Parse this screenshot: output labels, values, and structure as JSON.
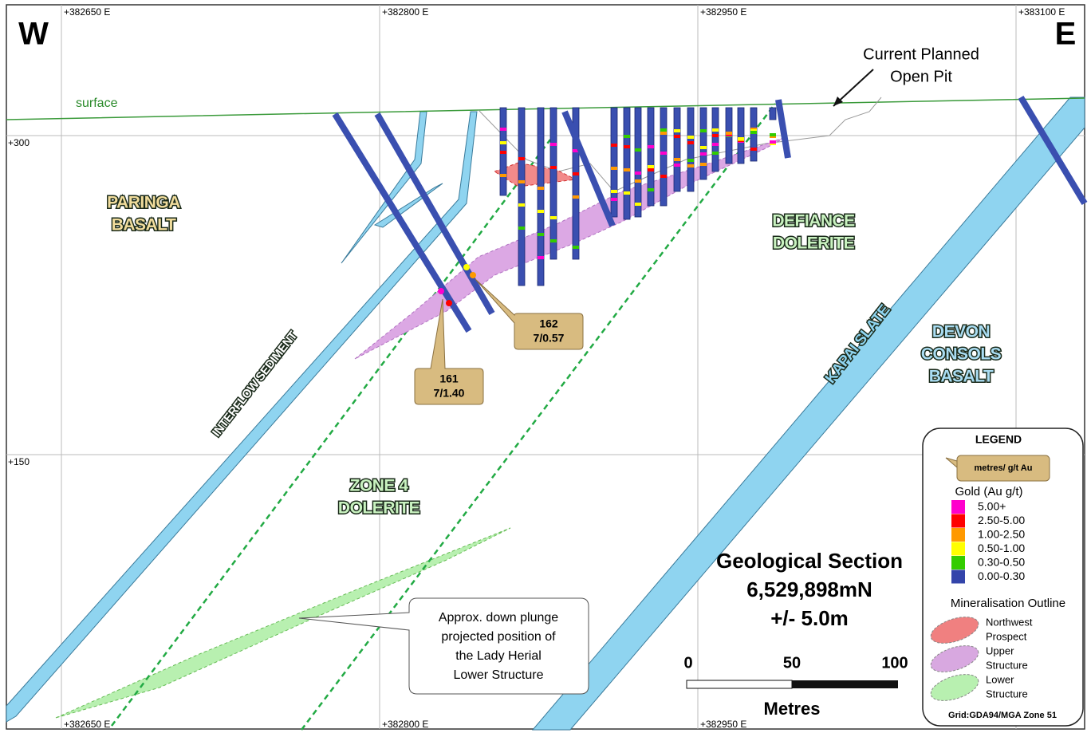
{
  "corners": {
    "west": "W",
    "east": "E"
  },
  "grid": {
    "eastings_top": [
      "+382650 E",
      "+382800 E",
      "+382950 E",
      "+383100 E"
    ],
    "eastings_bottom": [
      "+382650 E",
      "+382800 E",
      "+382950 E"
    ],
    "elevations": [
      "+300",
      "+150"
    ]
  },
  "surface": "surface",
  "pit_label": [
    "Current Planned",
    "Open Pit"
  ],
  "formations": [
    {
      "lines": [
        "PARINGA",
        "BASALT"
      ],
      "color": "#f0dc9c"
    },
    {
      "lines": [
        "DEFIANCE",
        "DOLERITE"
      ],
      "color": "#c9f2c0"
    },
    {
      "lines": [
        "DEVON",
        "CONSOLS",
        "BASALT"
      ],
      "color": "#a9dcf2"
    },
    {
      "lines": [
        "ZONE 4",
        "DOLERITE"
      ],
      "color": "#c9f2c0"
    }
  ],
  "structures": [
    "INTERFLOW SEDIMENT",
    "KAPAI SLATE"
  ],
  "intercepts": [
    {
      "hole": "161",
      "value": "7/1.40"
    },
    {
      "hole": "162",
      "value": "7/0.57"
    }
  ],
  "note": [
    "Approx. down plunge",
    "projected position of",
    "the Lady Herial",
    "Lower Structure"
  ],
  "title": [
    "Geological Section",
    "6,529,898mN",
    "+/- 5.0m"
  ],
  "scale": {
    "ticks": [
      "0",
      "50",
      "100"
    ],
    "unit": "Metres"
  },
  "legend": {
    "title": "LEGEND",
    "callout_example": "metres/ g/t Au",
    "gold_title": "Gold (Au g/t)",
    "gold_items": [
      {
        "label": "5.00+",
        "color": "#ff00cc"
      },
      {
        "label": "2.50-5.00",
        "color": "#ff0000"
      },
      {
        "label": "1.00-2.50",
        "color": "#ff9900"
      },
      {
        "label": "0.50-1.00",
        "color": "#ffff00"
      },
      {
        "label": "0.30-0.50",
        "color": "#33cc00"
      },
      {
        "label": "0.00-0.30",
        "color": "#3344aa"
      }
    ],
    "outline_title": "Mineralisation Outline",
    "outlines": [
      {
        "lines": [
          "Northwest",
          "Prospect"
        ],
        "color": "#f08080"
      },
      {
        "lines": [
          "Upper",
          "Structure"
        ],
        "color": "#d8a8e0"
      },
      {
        "lines": [
          "Lower",
          "Structure"
        ],
        "color": "#b8f0b0"
      }
    ],
    "grid": "Grid:GDA94/MGA Zone 51"
  }
}
